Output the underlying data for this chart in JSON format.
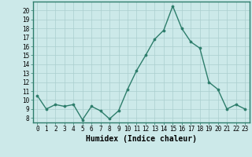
{
  "x": [
    0,
    1,
    2,
    3,
    4,
    5,
    6,
    7,
    8,
    9,
    10,
    11,
    12,
    13,
    14,
    15,
    16,
    17,
    18,
    19,
    20,
    21,
    22,
    23
  ],
  "y": [
    10.5,
    9.0,
    9.5,
    9.3,
    9.5,
    7.8,
    9.3,
    8.8,
    7.9,
    8.8,
    11.2,
    13.3,
    15.0,
    16.8,
    17.8,
    20.5,
    18.0,
    16.5,
    15.8,
    12.0,
    11.2,
    9.0,
    9.5,
    9.0
  ],
  "line_color": "#2d7d6b",
  "marker": "o",
  "markersize": 2.2,
  "linewidth": 1.0,
  "xlabel": "Humidex (Indice chaleur)",
  "xlim": [
    -0.5,
    23.5
  ],
  "ylim": [
    7.5,
    21.0
  ],
  "yticks": [
    8,
    9,
    10,
    11,
    12,
    13,
    14,
    15,
    16,
    17,
    18,
    19,
    20
  ],
  "xticks": [
    0,
    1,
    2,
    3,
    4,
    5,
    6,
    7,
    8,
    9,
    10,
    11,
    12,
    13,
    14,
    15,
    16,
    17,
    18,
    19,
    20,
    21,
    22,
    23
  ],
  "xtick_labels": [
    "0",
    "1",
    "2",
    "3",
    "4",
    "5",
    "6",
    "7",
    "8",
    "9",
    "10",
    "11",
    "12",
    "13",
    "14",
    "15",
    "16",
    "17",
    "18",
    "19",
    "20",
    "21",
    "22",
    "23"
  ],
  "background_color": "#cce9e9",
  "grid_color": "#aacece",
  "tick_fontsize": 5.5,
  "xlabel_fontsize": 7.0
}
